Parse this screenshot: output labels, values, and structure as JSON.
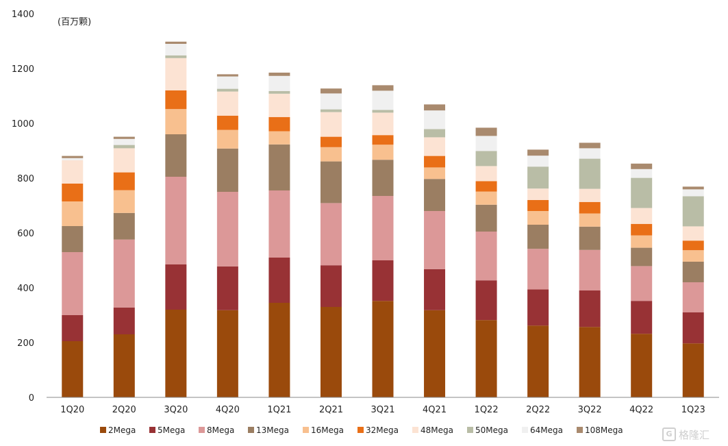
{
  "chart_data": {
    "type": "bar",
    "stacked": true,
    "unit_label": "(百万颗)",
    "categories": [
      "1Q20",
      "2Q20",
      "3Q20",
      "4Q20",
      "1Q21",
      "2Q21",
      "3Q21",
      "4Q21",
      "1Q22",
      "2Q22",
      "3Q22",
      "4Q22",
      "1Q23"
    ],
    "ylim": [
      0,
      1400
    ],
    "yticks": [
      0,
      200,
      400,
      600,
      800,
      1000,
      1200,
      1400
    ],
    "legend_position": "bottom",
    "series": [
      {
        "name": "2Mega",
        "color": "#9a4a0c",
        "values": [
          205,
          230,
          320,
          318,
          345,
          330,
          352,
          318,
          282,
          262,
          257,
          232,
          197
        ]
      },
      {
        "name": "5Mega",
        "color": "#983235",
        "values": [
          95,
          98,
          165,
          160,
          165,
          152,
          148,
          150,
          145,
          132,
          133,
          120,
          113
        ]
      },
      {
        "name": "8Mega",
        "color": "#dc9898",
        "values": [
          230,
          248,
          320,
          272,
          245,
          227,
          235,
          212,
          178,
          148,
          148,
          127,
          110
        ]
      },
      {
        "name": "13Mega",
        "color": "#9b7e62",
        "values": [
          95,
          97,
          155,
          158,
          168,
          152,
          132,
          117,
          98,
          88,
          85,
          67,
          75
        ]
      },
      {
        "name": "16Mega",
        "color": "#f8c08f",
        "values": [
          90,
          83,
          92,
          68,
          48,
          52,
          55,
          42,
          48,
          50,
          48,
          45,
          42
        ]
      },
      {
        "name": "32Mega",
        "color": "#e96f17",
        "values": [
          65,
          65,
          68,
          52,
          52,
          38,
          35,
          42,
          38,
          40,
          42,
          42,
          35
        ]
      },
      {
        "name": "48Mega",
        "color": "#fce3d3",
        "values": [
          85,
          88,
          118,
          88,
          85,
          90,
          82,
          68,
          55,
          42,
          48,
          58,
          52
        ]
      },
      {
        "name": "50Mega",
        "color": "#b9bda6",
        "values": [
          0,
          12,
          10,
          10,
          10,
          10,
          10,
          30,
          55,
          80,
          110,
          110,
          110
        ]
      },
      {
        "name": "64Mega",
        "color": "#f0f0f0",
        "values": [
          8,
          22,
          42,
          45,
          55,
          58,
          70,
          68,
          55,
          40,
          38,
          32,
          25
        ]
      },
      {
        "name": "108Mega",
        "color": "#a98a6e",
        "values": [
          8,
          8,
          8,
          8,
          12,
          18,
          20,
          22,
          30,
          22,
          20,
          20,
          10
        ]
      }
    ]
  },
  "watermark": {
    "text": "格隆汇",
    "mark": "G"
  }
}
